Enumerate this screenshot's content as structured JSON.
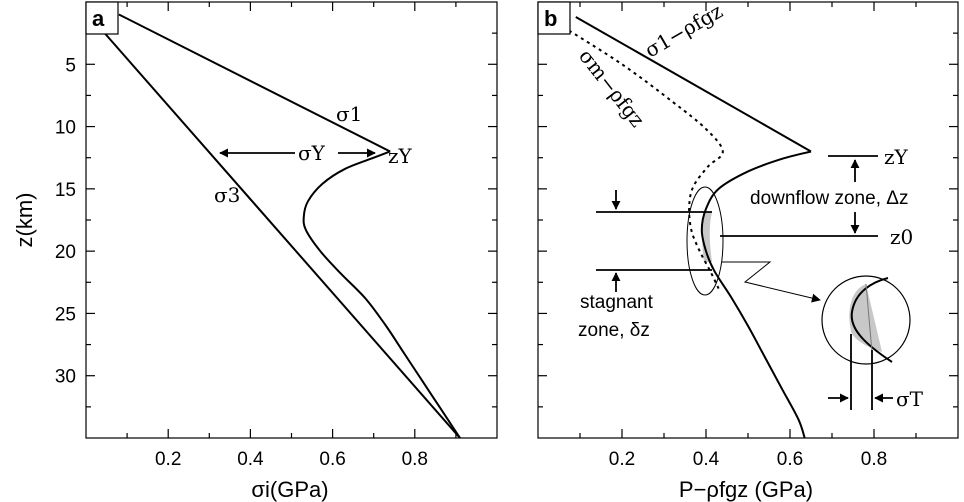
{
  "chart_data": [
    {
      "type": "line",
      "panel_label": "a",
      "xlabel": "σi(GPa)",
      "ylabel": "z(km)",
      "xlim": [
        0,
        1.0
      ],
      "ylim": [
        0,
        35
      ],
      "y_inverted": true,
      "x_ticks": [
        0.2,
        0.4,
        0.6,
        0.8
      ],
      "x_tick_labels": [
        "0.2",
        "0.4",
        "0.6",
        "0.8"
      ],
      "y_ticks": [
        5,
        10,
        15,
        20,
        25,
        30
      ],
      "y_tick_labels": [
        "5",
        "10",
        "15",
        "20",
        "25",
        "30"
      ],
      "series": [
        {
          "name": "σ1",
          "points": [
            [
              0.08,
              1.0
            ],
            [
              0.74,
              12.0
            ]
          ]
        },
        {
          "name": "σ3",
          "points": [
            [
              0.04,
              2.3
            ],
            [
              0.91,
              35.0
            ]
          ]
        },
        {
          "name": "",
          "points": [
            [
              0.74,
              12.0
            ],
            [
              0.7,
              12.5
            ],
            [
              0.63,
              13.4
            ],
            [
              0.575,
              14.6
            ],
            [
              0.54,
              16.0
            ],
            [
              0.53,
              17.2
            ],
            [
              0.535,
              18.3
            ],
            [
              0.57,
              20.0
            ],
            [
              0.62,
              21.8
            ],
            [
              0.68,
              23.8
            ],
            [
              0.73,
              26.0
            ],
            [
              0.77,
              28.0
            ],
            [
              0.82,
              30.5
            ],
            [
              0.86,
              32.5
            ],
            [
              0.91,
              35.0
            ]
          ]
        }
      ],
      "annotations": {
        "sigma_1": "σ1",
        "sigma_3": "σ3",
        "sigma_Y": "σY",
        "z_Y": "zY"
      }
    },
    {
      "type": "line",
      "panel_label": "b",
      "xlabel": "P−ρfgz (GPa)",
      "xlim": [
        0,
        1.0
      ],
      "ylim": [
        0,
        35
      ],
      "y_inverted": true,
      "x_ticks": [
        0.2,
        0.4,
        0.6,
        0.8
      ],
      "x_tick_labels": [
        "0.2",
        "0.4",
        "0.6",
        "0.8"
      ],
      "series": [
        {
          "name": "σ1−ρfgz",
          "points": [
            [
              0.09,
              1.2
            ],
            [
              0.65,
              12.0
            ]
          ]
        },
        {
          "name": "",
          "points": [
            [
              0.65,
              12.0
            ],
            [
              0.58,
              12.6
            ],
            [
              0.5,
              13.6
            ],
            [
              0.43,
              15.0
            ],
            [
              0.4,
              16.6
            ],
            [
              0.39,
              18.3
            ],
            [
              0.4,
              20.0
            ],
            [
              0.42,
              21.6
            ],
            [
              0.46,
              23.7
            ],
            [
              0.5,
              26.0
            ],
            [
              0.54,
              28.5
            ],
            [
              0.58,
              31.0
            ],
            [
              0.62,
              33.5
            ],
            [
              0.635,
              35.0
            ]
          ]
        },
        {
          "name": "σm−ρfgz",
          "points": [
            [
              0.06,
              2.0
            ],
            [
              0.2,
              5.0
            ],
            [
              0.32,
              8.0
            ],
            [
              0.4,
              10.2
            ],
            [
              0.44,
              12.0
            ],
            [
              0.405,
              13.2
            ],
            [
              0.37,
              14.8
            ],
            [
              0.36,
              16.4
            ],
            [
              0.365,
              18.3
            ],
            [
              0.385,
              20.0
            ],
            [
              0.41,
              21.6
            ],
            [
              0.43,
              23.0
            ]
          ]
        }
      ],
      "annotations": {
        "sigma_1_label": "σ1−ρfgz",
        "sigma_m_label": "σm−ρfgz",
        "z_Y": "zY",
        "z_0": "z0",
        "downflow": "downflow zone, Δz",
        "stagnant_line1": "stagnant",
        "stagnant_line2": "zone, δz",
        "sigma_T": "σT"
      }
    }
  ]
}
